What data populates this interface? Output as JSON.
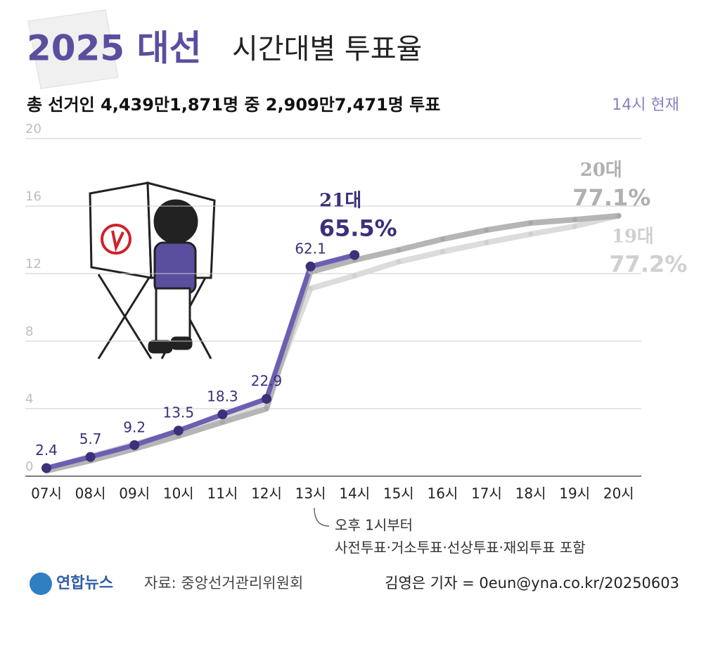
{
  "chart_data": {
    "type": "line",
    "title": "2025 대선",
    "subtitle": "시간대별 투표율",
    "caption": "총 선거인 4,439만1,871명 중 2,909만7,471명 투표",
    "note": "14시 현재",
    "annotation": [
      "오후 1시부터",
      "사전투표·거소투표·선상투표·재외투표 포함"
    ],
    "logo": "연합뉴스",
    "source": "자료: 중앙선거관리위원회",
    "credit": "김영은 기자 = 0eun@yna.co.kr/20250603",
    "categories": [
      "07시",
      "08시",
      "09시",
      "10시",
      "11시",
      "12시",
      "13시",
      "14시",
      "15시",
      "16시",
      "17시",
      "18시",
      "19시",
      "20시"
    ],
    "ylim": [
      0,
      100
    ],
    "yticks": [
      0,
      {
        "value": 20,
        "label": "4"
      },
      {
        "value": 40,
        "label": "8"
      },
      {
        "value": 60,
        "label": "12"
      },
      {
        "value": 80,
        "label": "16"
      },
      {
        "value": 100,
        "label": "20"
      }
    ],
    "grid": true,
    "series": [
      {
        "name": "19대",
        "color": "#dcdcdc",
        "values": [
          2.3,
          5.9,
          9.5,
          13.2,
          17.4,
          22.0,
          55.6,
          59.4,
          63.5,
          66.5,
          69.2,
          71.7,
          74.0,
          77.2
        ],
        "value_labels": [
          null,
          null,
          null,
          null,
          null,
          null,
          null,
          null,
          null,
          null,
          null,
          null,
          null,
          "77.2%"
        ]
      },
      {
        "name": "20대",
        "color": "#b5b5b5",
        "values": [
          1.6,
          4.6,
          8.1,
          11.9,
          16.0,
          20.0,
          60.5,
          64.0,
          67.0,
          70.2,
          72.9,
          75.0,
          76.0,
          77.1
        ],
        "value_labels": [
          null,
          null,
          null,
          null,
          null,
          null,
          null,
          null,
          null,
          null,
          null,
          null,
          null,
          "77.1%"
        ]
      },
      {
        "name": "21대",
        "color": "#6a5fb0",
        "values": [
          2.4,
          5.7,
          9.2,
          13.5,
          18.3,
          22.9,
          62.1,
          65.5,
          null,
          null,
          null,
          null,
          null,
          null
        ],
        "value_labels": [
          "2.4",
          "5.7",
          "9.2",
          "13.5",
          "18.3",
          "22.9",
          "62.1",
          "65.5%",
          null,
          null,
          null,
          null,
          null,
          null
        ]
      }
    ]
  }
}
